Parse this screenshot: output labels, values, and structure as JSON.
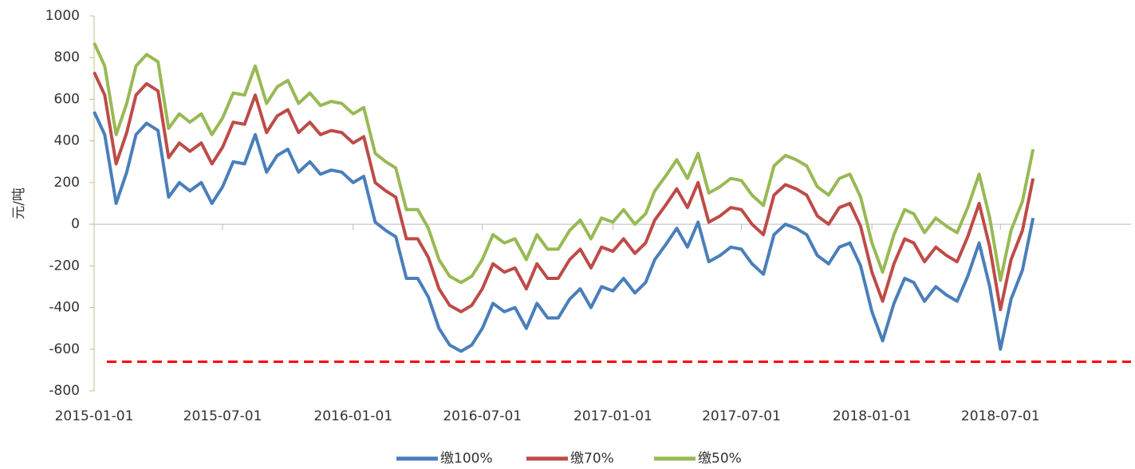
{
  "chart_data": {
    "type": "line",
    "y_label": "元/吨",
    "x": [
      "2015-01-01",
      "2015-01-16",
      "2015-02-01",
      "2015-02-16",
      "2015-03-01",
      "2015-03-16",
      "2015-04-01",
      "2015-04-16",
      "2015-05-01",
      "2015-05-16",
      "2015-06-01",
      "2015-06-16",
      "2015-07-01",
      "2015-07-16",
      "2015-08-01",
      "2015-08-16",
      "2015-09-01",
      "2015-09-16",
      "2015-10-01",
      "2015-10-16",
      "2015-11-01",
      "2015-11-16",
      "2015-12-01",
      "2015-12-16",
      "2016-01-01",
      "2016-01-16",
      "2016-02-01",
      "2016-02-16",
      "2016-03-01",
      "2016-03-16",
      "2016-04-01",
      "2016-04-16",
      "2016-05-01",
      "2016-05-16",
      "2016-06-01",
      "2016-06-16",
      "2016-07-01",
      "2016-07-16",
      "2016-08-01",
      "2016-08-16",
      "2016-09-01",
      "2016-09-16",
      "2016-10-01",
      "2016-10-16",
      "2016-11-01",
      "2016-11-16",
      "2016-12-01",
      "2016-12-16",
      "2017-01-01",
      "2017-01-16",
      "2017-02-01",
      "2017-02-16",
      "2017-03-01",
      "2017-03-16",
      "2017-04-01",
      "2017-04-16",
      "2017-05-01",
      "2017-05-16",
      "2017-06-01",
      "2017-06-16",
      "2017-07-01",
      "2017-07-16",
      "2017-08-01",
      "2017-08-16",
      "2017-09-01",
      "2017-09-16",
      "2017-10-01",
      "2017-10-16",
      "2017-11-01",
      "2017-11-16",
      "2017-12-01",
      "2017-12-16",
      "2018-01-01",
      "2018-01-16",
      "2018-02-01",
      "2018-02-16",
      "2018-03-01",
      "2018-03-16",
      "2018-04-01",
      "2018-04-16",
      "2018-05-01",
      "2018-05-16",
      "2018-06-01",
      "2018-06-16",
      "2018-07-01",
      "2018-07-16",
      "2018-08-01",
      "2018-08-16"
    ],
    "series": [
      {
        "name": "缴100%",
        "color": "#4a7ebb",
        "values": [
          540,
          430,
          100,
          250,
          430,
          485,
          450,
          130,
          200,
          160,
          200,
          100,
          180,
          300,
          290,
          430,
          250,
          330,
          360,
          250,
          300,
          240,
          260,
          250,
          200,
          230,
          10,
          -30,
          -60,
          -260,
          -260,
          -350,
          -500,
          -580,
          -610,
          -580,
          -500,
          -380,
          -420,
          -400,
          -500,
          -380,
          -450,
          -450,
          -360,
          -310,
          -400,
          -300,
          -320,
          -260,
          -330,
          -280,
          -170,
          -100,
          -20,
          -110,
          10,
          -180,
          -150,
          -110,
          -120,
          -190,
          -240,
          -50,
          0,
          -20,
          -50,
          -150,
          -190,
          -110,
          -90,
          -200,
          -420,
          -560,
          -380,
          -260,
          -280,
          -370,
          -300,
          -340,
          -370,
          -250,
          -90,
          -300,
          -600,
          -360,
          -220,
          30
        ]
      },
      {
        "name": "缴70%",
        "color": "#be4b48",
        "values": [
          730,
          620,
          290,
          440,
          620,
          675,
          640,
          320,
          390,
          350,
          390,
          290,
          370,
          490,
          480,
          620,
          440,
          520,
          550,
          440,
          490,
          430,
          450,
          440,
          390,
          420,
          200,
          160,
          130,
          -70,
          -70,
          -160,
          -310,
          -390,
          -420,
          -390,
          -310,
          -190,
          -230,
          -210,
          -310,
          -190,
          -260,
          -260,
          -170,
          -120,
          -210,
          -110,
          -130,
          -70,
          -140,
          -90,
          20,
          90,
          170,
          80,
          200,
          10,
          40,
          80,
          70,
          0,
          -50,
          140,
          190,
          170,
          140,
          40,
          0,
          80,
          100,
          -10,
          -230,
          -370,
          -190,
          -70,
          -90,
          -180,
          -110,
          -150,
          -180,
          -60,
          100,
          -110,
          -410,
          -170,
          -30,
          220
        ]
      },
      {
        "name": "缴50%",
        "color": "#98b954",
        "values": [
          870,
          760,
          430,
          580,
          760,
          815,
          780,
          460,
          530,
          490,
          530,
          430,
          510,
          630,
          620,
          760,
          580,
          660,
          690,
          580,
          630,
          570,
          590,
          580,
          530,
          560,
          340,
          300,
          270,
          70,
          70,
          -20,
          -170,
          -250,
          -280,
          -250,
          -170,
          -50,
          -90,
          -70,
          -170,
          -50,
          -120,
          -120,
          -30,
          20,
          -70,
          30,
          10,
          70,
          0,
          50,
          160,
          230,
          310,
          220,
          340,
          150,
          180,
          220,
          210,
          140,
          90,
          280,
          330,
          310,
          280,
          180,
          140,
          220,
          240,
          130,
          -90,
          -230,
          -50,
          70,
          50,
          -40,
          30,
          -10,
          -40,
          80,
          240,
          30,
          -270,
          -30,
          110,
          360
        ]
      }
    ],
    "xlim": [
      "2015-01-01",
      "2019-01-01"
    ],
    "xticks": [
      "2015-01-01",
      "2015-07-01",
      "2016-01-01",
      "2016-07-01",
      "2017-01-01",
      "2017-07-01",
      "2018-01-01",
      "2018-07-01"
    ],
    "ylim": [
      -800,
      1000
    ],
    "yticks": [
      -800,
      -600,
      -400,
      -200,
      0,
      200,
      400,
      600,
      800,
      1000
    ],
    "reference_line": {
      "value": -660,
      "color": "#ff0000"
    },
    "grid": false,
    "legend": "bottom"
  }
}
